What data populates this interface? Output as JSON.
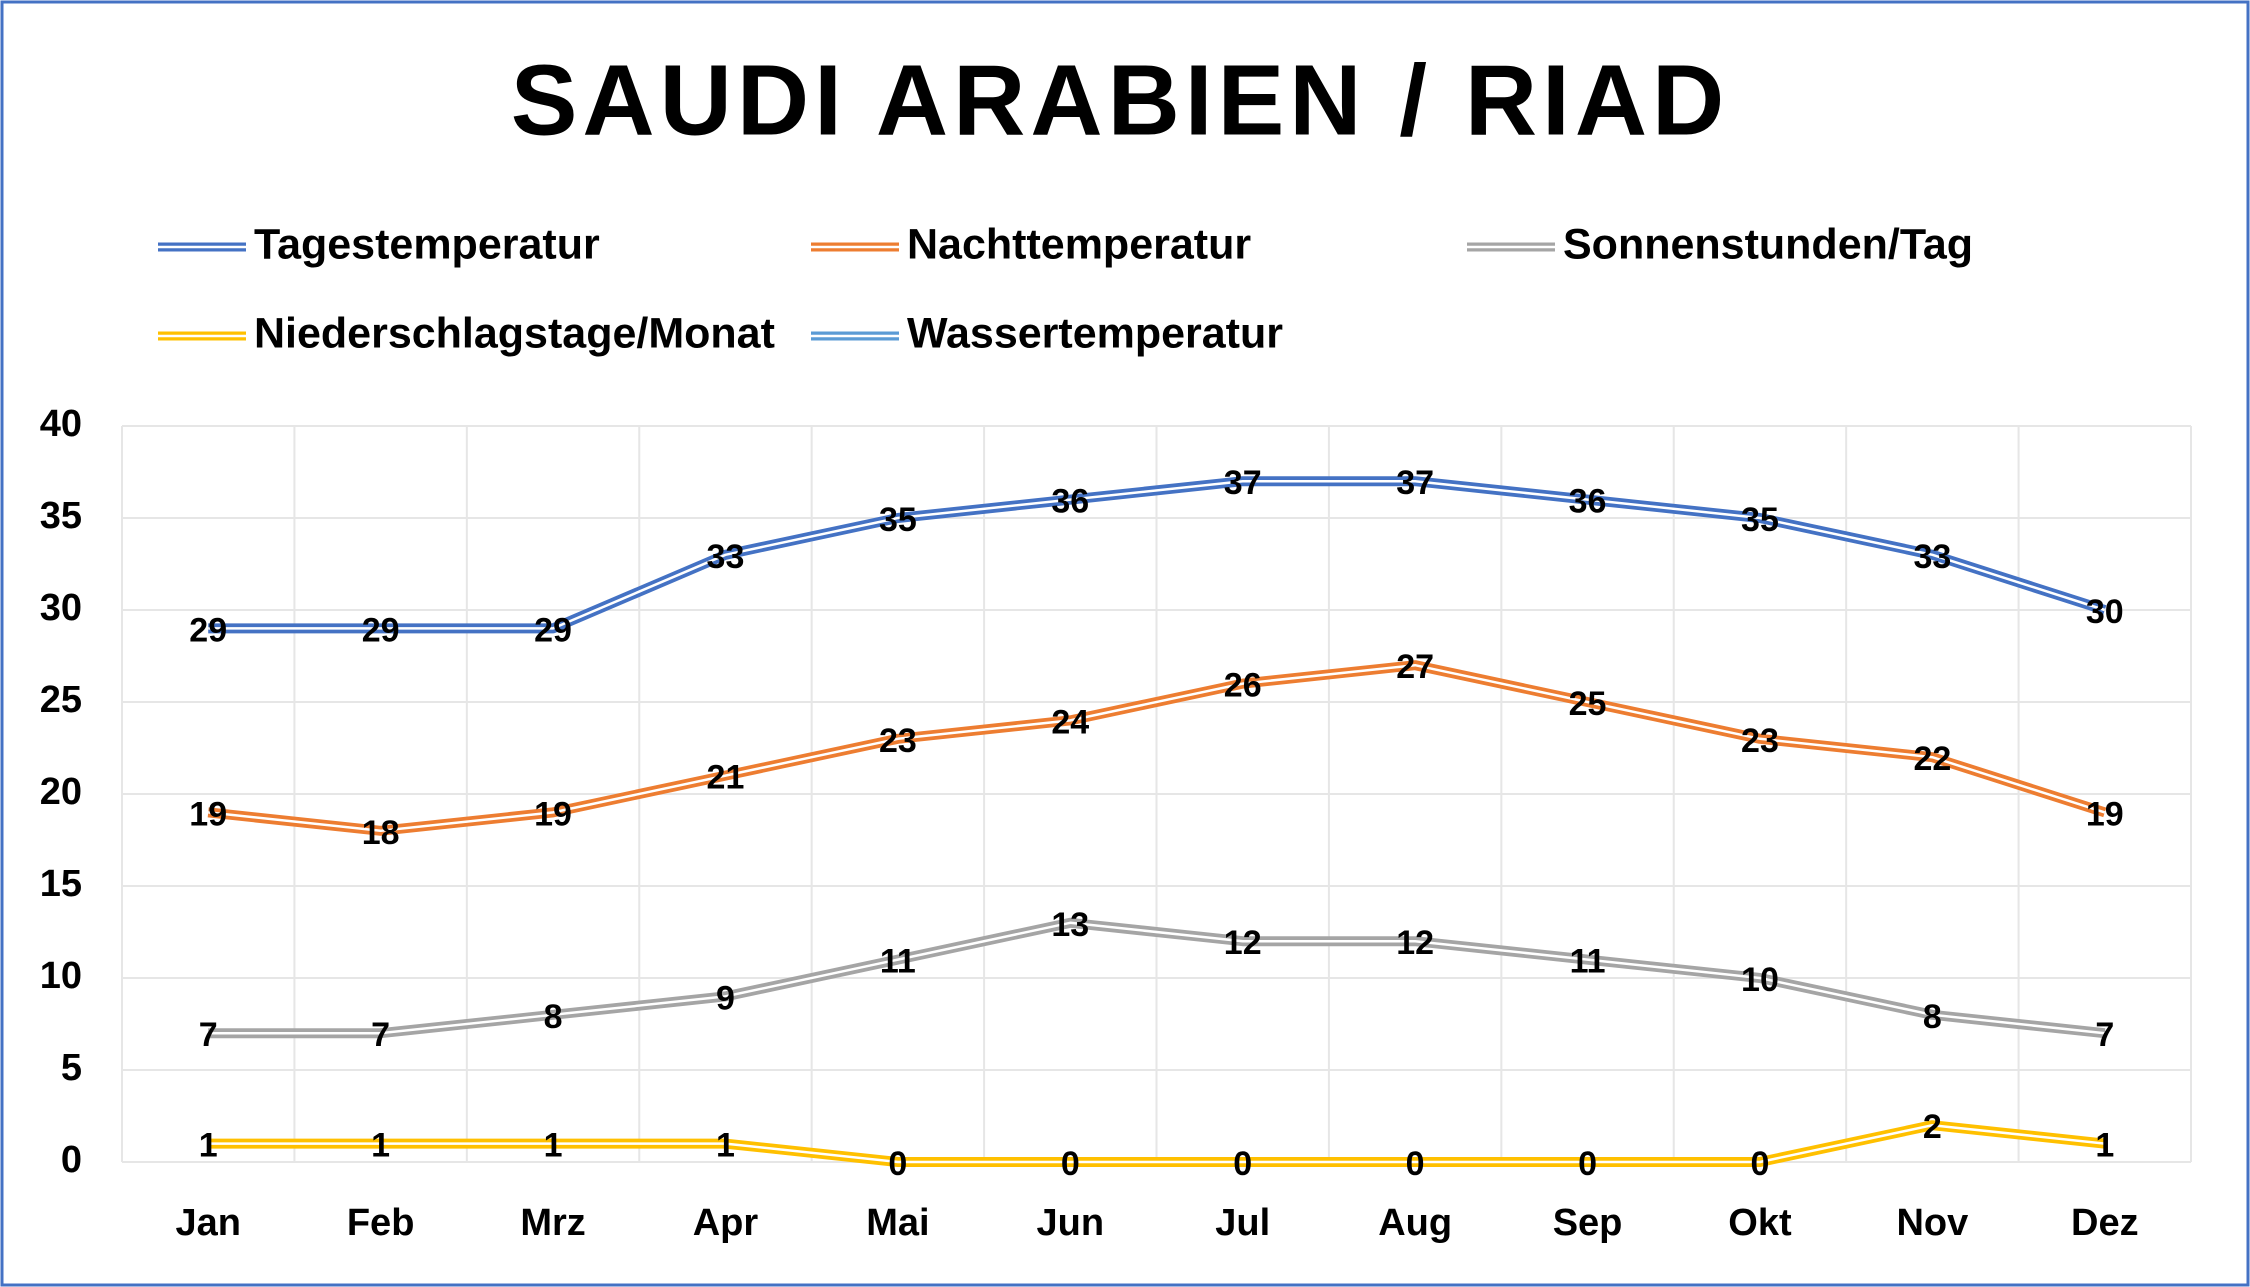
{
  "chart_data": {
    "type": "line",
    "title": "SAUDI ARABIEN / RIAD",
    "categories": [
      "Jan",
      "Feb",
      "Mrz",
      "Apr",
      "Mai",
      "Jun",
      "Jul",
      "Aug",
      "Sep",
      "Okt",
      "Nov",
      "Dez"
    ],
    "series": [
      {
        "name": "Tagestemperatur",
        "color": "#4472c4",
        "values": [
          29,
          29,
          29,
          33,
          35,
          36,
          37,
          37,
          36,
          35,
          33,
          30
        ]
      },
      {
        "name": "Nachttemperatur",
        "color": "#ed7d31",
        "values": [
          19,
          18,
          19,
          21,
          23,
          24,
          26,
          27,
          25,
          23,
          22,
          19
        ]
      },
      {
        "name": "Sonnenstunden/Tag",
        "color": "#a5a5a5",
        "values": [
          7,
          7,
          8,
          9,
          11,
          13,
          12,
          12,
          11,
          10,
          8,
          7
        ]
      },
      {
        "name": "Niederschlagstage/Monat",
        "color": "#ffc000",
        "values": [
          1,
          1,
          1,
          1,
          0,
          0,
          0,
          0,
          0,
          0,
          2,
          1
        ]
      },
      {
        "name": "Wassertemperatur",
        "color": "#5b9bd5",
        "values": [
          null,
          null,
          null,
          null,
          null,
          null,
          null,
          null,
          null,
          null,
          null,
          null
        ]
      }
    ],
    "ylim": [
      0,
      40
    ],
    "yticks": [
      0,
      5,
      10,
      15,
      20,
      25,
      30,
      35,
      40
    ],
    "grid": true,
    "legend": "top"
  }
}
